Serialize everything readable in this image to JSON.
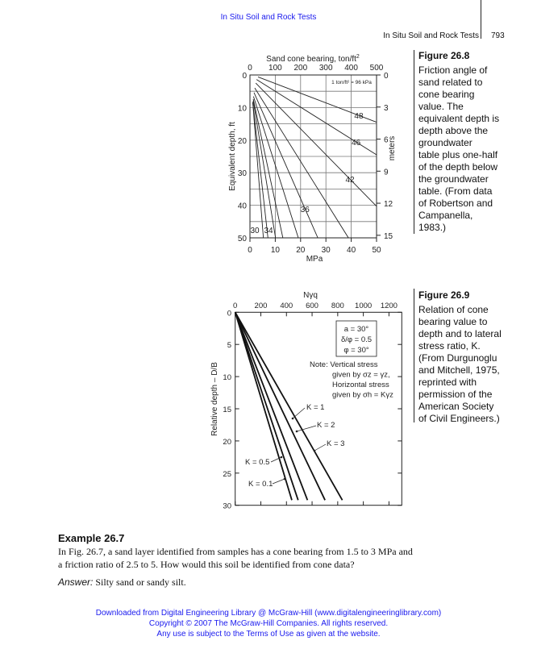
{
  "header": {
    "top_title": "In Situ Soil and Rock Tests",
    "running_head": "In Situ Soil and Rock Tests",
    "page_number": "793"
  },
  "figure_26_8": {
    "caption_title": "Figure 26.8",
    "caption_lines": [
      "Friction angle of",
      "sand related to",
      "cone bearing",
      "value. The",
      "equivalent depth is",
      "depth above the",
      "groundwater",
      "table plus one-half",
      "of the depth below",
      "the groundwater",
      "table. (From data",
      "of Robertson and",
      "Campanella,",
      "1983.)"
    ],
    "chart_data": {
      "type": "line",
      "title": "",
      "xlabel_top": "Sand cone bearing, ton/ft",
      "xlabel_top_sup": "2",
      "xlabel_bottom": "MPa",
      "ylabel_left": "Equivalent depth, ft",
      "ylabel_right": "meters",
      "note": "1 ton/ft² = 96 kPa",
      "xlim": [
        0,
        500
      ],
      "ylim": [
        0,
        50
      ],
      "y_inverted": true,
      "grid": true,
      "x_ticks_top": [
        "0",
        "100",
        "200",
        "300",
        "400",
        "500"
      ],
      "x_ticks_bottom": [
        "0",
        "10",
        "20",
        "30",
        "40",
        "50"
      ],
      "y_ticks_left": [
        "0",
        "10",
        "20",
        "30",
        "40",
        "50"
      ],
      "y_ticks_right": [
        "0",
        "3",
        "6",
        "9",
        "12",
        "15"
      ],
      "series": [
        {
          "label": "48",
          "points": [
            [
              32,
              0.6
            ],
            [
              500,
              14.5
            ]
          ]
        },
        {
          "label": "46",
          "points": [
            [
              26,
              1.4
            ],
            [
              500,
              24.5
            ]
          ]
        },
        {
          "label": "42",
          "points": [
            [
              23,
              2.5
            ],
            [
              500,
              40.3
            ]
          ]
        },
        {
          "label": "",
          "points": [
            [
              19,
              4
            ],
            [
              389,
              50
            ]
          ]
        },
        {
          "label": "36",
          "points": [
            [
              16,
              5.4
            ],
            [
              268,
              50
            ]
          ]
        },
        {
          "label": "",
          "points": [
            [
              14,
              6.6
            ],
            [
              191,
              50
            ]
          ]
        },
        {
          "label": "",
          "points": [
            [
              13,
              7.4
            ],
            [
              130,
              50
            ]
          ]
        },
        {
          "label": "34",
          "points": [
            [
              13,
              7.9
            ],
            [
              101,
              50
            ]
          ]
        },
        {
          "label": "",
          "points": [
            [
              11,
              8.3
            ],
            [
              71,
              50
            ]
          ]
        },
        {
          "label": "30",
          "points": [
            [
              11,
              8.3
            ],
            [
              53,
              50
            ]
          ]
        }
      ]
    }
  },
  "figure_26_9": {
    "caption_title": "Figure 26.9",
    "caption_lines": [
      "Relation of cone",
      "bearing value to",
      "depth and to lateral",
      "stress ratio, K.",
      "(From Durgunoglu",
      "and Mitchell, 1975,",
      "reprinted with",
      "permission of the",
      "American Society",
      "of Civil Engineers.)"
    ],
    "chart_data": {
      "type": "line",
      "title": "",
      "xlabel": "Nγq",
      "ylabel": "Relative depth – D/B",
      "xlim": [
        0,
        1300
      ],
      "ylim": [
        0,
        30
      ],
      "y_inverted": true,
      "grid": false,
      "x_ticks": [
        "0",
        "200",
        "400",
        "600",
        "800",
        "1000",
        "1200"
      ],
      "y_ticks": [
        "0",
        "5",
        "10",
        "15",
        "20",
        "25",
        "30"
      ],
      "params_box": [
        "a = 30°",
        "δ/φ = 0.5",
        "φ = 30°"
      ],
      "note_lines": [
        "Note: Vertical stress",
        "given by σz = γz,",
        "Horizontal stress",
        "given by σh = Kγz"
      ],
      "series": [
        {
          "label": "K = 0.1",
          "points": [
            [
              0,
              0
            ],
            [
              442,
              29.2
            ]
          ]
        },
        {
          "label": "K = 0.5",
          "points": [
            [
              0,
              0
            ],
            [
              491,
              29.2
            ]
          ]
        },
        {
          "label": "K = 1",
          "points": [
            [
              0,
              0
            ],
            [
              564,
              29.2
            ]
          ]
        },
        {
          "label": "K = 2",
          "points": [
            [
              0,
              0
            ],
            [
              701,
              29.2
            ]
          ]
        },
        {
          "label": "K = 3",
          "points": [
            [
              0,
              0
            ],
            [
              836,
              29.2
            ]
          ]
        }
      ]
    }
  },
  "example": {
    "title": "Example 26.7",
    "body_lines": [
      "In Fig. 26.7, a sand layer identified from samples has a cone bearing from 1.5 to 3 MPa and",
      "a friction ratio of 2.5 to 5. How would this soil be identified from cone data?"
    ],
    "answer_label": "Answer:",
    "answer_text": " Silty sand or sandy silt."
  },
  "footer": {
    "line1": "Downloaded from Digital Engineering Library @ McGraw-Hill (www.digitalengineeringlibrary.com)",
    "line2": "Copyright © 2007 The McGraw-Hill Companies. All rights reserved.",
    "line3": "Any use is subject to the Terms of Use as given at the website."
  },
  "colors": {
    "link_blue": "#1a1aee",
    "ink": "#222222"
  }
}
